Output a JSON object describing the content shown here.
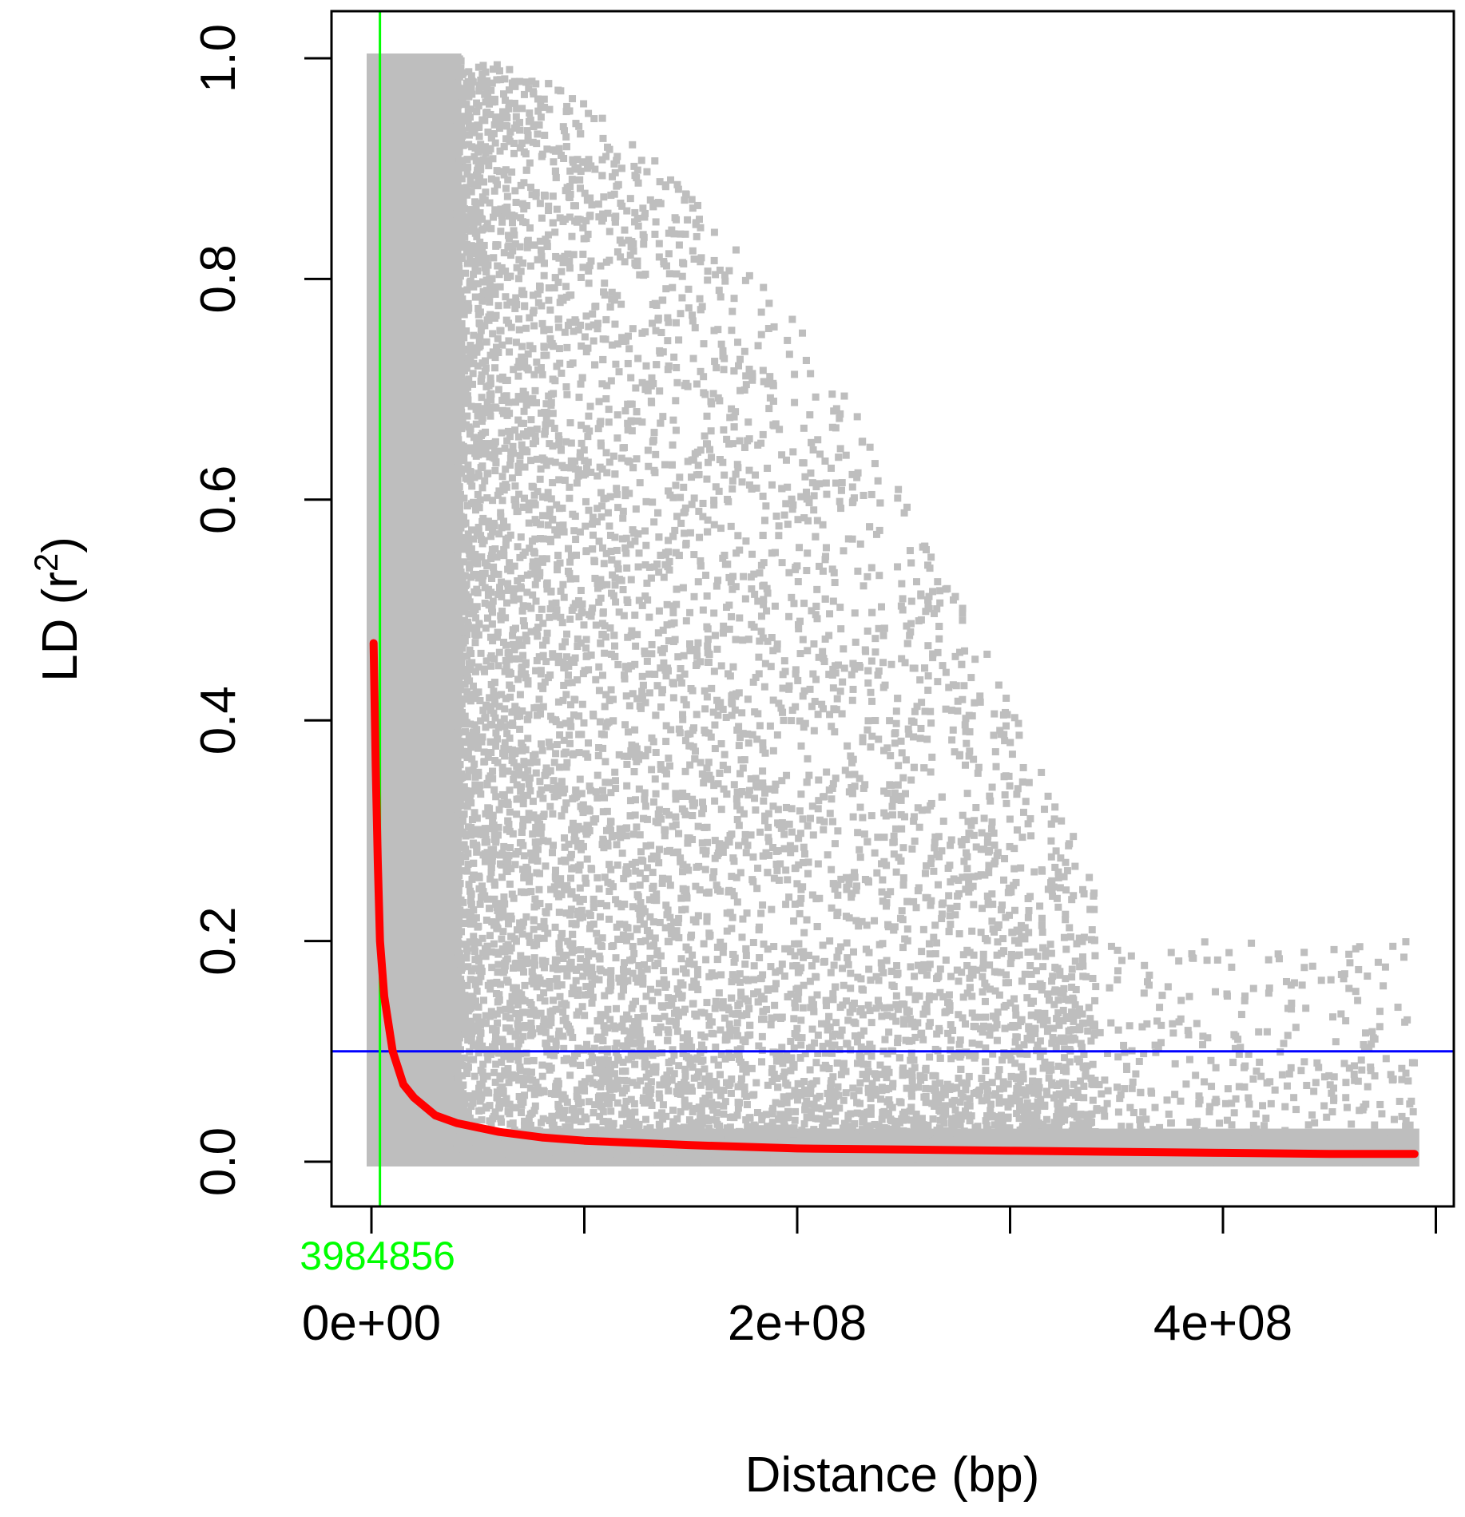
{
  "chart_data": {
    "type": "scatter",
    "title": "",
    "xlabel": "Distance (bp)",
    "ylabel_main": "LD (r",
    "ylabel_sup": "2",
    "ylabel_close": ")",
    "xlim": [
      -18000000,
      510000000
    ],
    "ylim": [
      -0.04,
      1.04
    ],
    "x_ticks": [
      0,
      100000000,
      200000000,
      300000000,
      400000000,
      500000000
    ],
    "x_tick_labels": [
      {
        "value": 0,
        "label": "0e+00"
      },
      {
        "value": 200000000,
        "label": "2e+08"
      },
      {
        "value": 400000000,
        "label": "4e+08"
      }
    ],
    "y_ticks": [
      0.0,
      0.2,
      0.4,
      0.6,
      0.8,
      1.0
    ],
    "y_tick_labels": [
      "0.0",
      "0.2",
      "0.4",
      "0.6",
      "0.8",
      "1.0"
    ],
    "grid": false,
    "colors": {
      "points": "#bebebe",
      "decay_curve": "#ff0000",
      "threshold_line": "#0000ff",
      "decay_marker": "#00ff00"
    },
    "threshold": {
      "y": 0.1
    },
    "decay_marker": {
      "x": 3984856,
      "label": "3984856"
    },
    "series": [
      {
        "kind": "points",
        "dense_region": {
          "x": [
            0,
            40000000
          ],
          "y": [
            0.0,
            1.0
          ]
        },
        "x_extent": [
          0,
          490000000
        ],
        "y_extent": [
          0.0,
          1.0
        ]
      },
      {
        "kind": "curve",
        "x": [
          1000000,
          2000000,
          3000000,
          4000000,
          6000000,
          8000000,
          10000000,
          15000000,
          20000000,
          30000000,
          40000000,
          60000000,
          80000000,
          100000000,
          150000000,
          200000000,
          250000000,
          300000000,
          350000000,
          400000000,
          450000000,
          490000000
        ],
        "y": [
          0.47,
          0.36,
          0.27,
          0.2,
          0.15,
          0.125,
          0.1,
          0.07,
          0.058,
          0.042,
          0.035,
          0.027,
          0.022,
          0.019,
          0.015,
          0.012,
          0.011,
          0.01,
          0.009,
          0.008,
          0.007,
          0.007
        ]
      }
    ]
  }
}
